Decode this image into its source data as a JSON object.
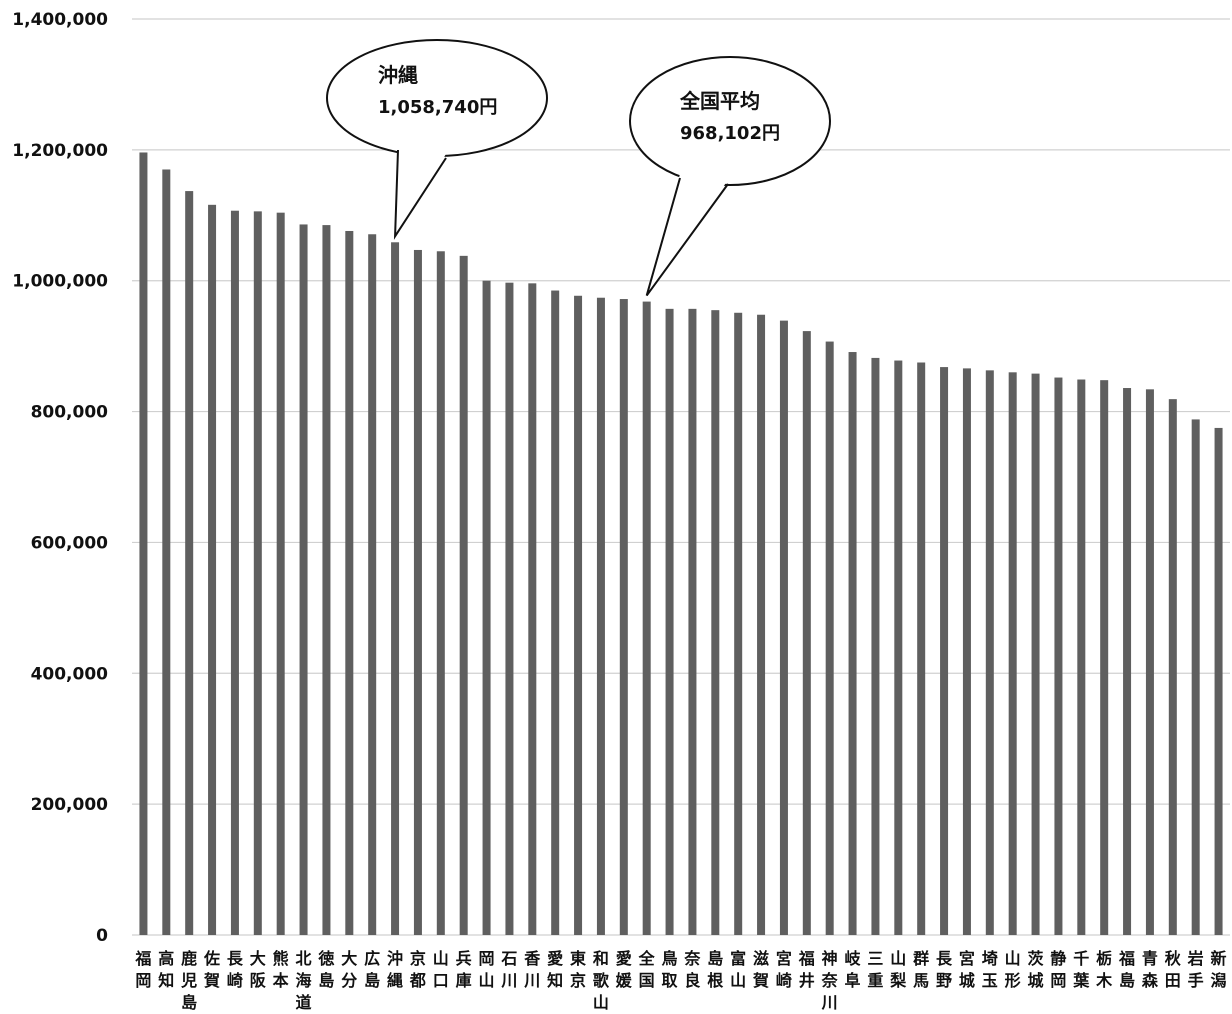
{
  "chart_data": {
    "type": "bar",
    "title": "",
    "xlabel": "",
    "ylabel": "",
    "ylim": [
      0,
      1400000
    ],
    "yticks": [
      "0",
      "200,000",
      "400,000",
      "600,000",
      "800,000",
      "1,000,000",
      "1,200,000",
      "1,400,000"
    ],
    "grid": true,
    "bar_color": "#5f5f5f",
    "categories": [
      "福岡",
      "高知",
      "鹿児島",
      "佐賀",
      "長崎",
      "大阪",
      "熊本",
      "北海道",
      "徳島",
      "大分",
      "広島",
      "沖縄",
      "京都",
      "山口",
      "兵庫",
      "岡山",
      "石川",
      "香川",
      "愛知",
      "東京",
      "和歌山",
      "愛媛",
      "全国",
      "鳥取",
      "奈良",
      "島根",
      "富山",
      "滋賀",
      "宮崎",
      "福井",
      "神奈川",
      "岐阜",
      "三重",
      "山梨",
      "群馬",
      "長野",
      "宮城",
      "埼玉",
      "山形",
      "茨城",
      "静岡",
      "千葉",
      "栃木",
      "福島",
      "青森",
      "秋田",
      "岩手",
      "新潟"
    ],
    "values": [
      1196000,
      1170000,
      1137000,
      1116000,
      1107000,
      1106000,
      1104000,
      1086000,
      1085000,
      1076000,
      1071000,
      1058740,
      1047000,
      1045000,
      1038000,
      1000000,
      997000,
      996000,
      985000,
      977000,
      974000,
      972000,
      968102,
      957000,
      957000,
      955000,
      951000,
      948000,
      939000,
      923000,
      907000,
      891000,
      882000,
      878000,
      875000,
      868000,
      866000,
      863000,
      860000,
      858000,
      852000,
      849000,
      848000,
      836000,
      834000,
      819000,
      788000,
      775000
    ],
    "annotations": [
      {
        "lines": [
          "沖縄",
          "1,058,740円"
        ],
        "category": "沖縄"
      },
      {
        "lines": [
          "全国平均",
          "968,102円"
        ],
        "category": "全国"
      }
    ]
  }
}
